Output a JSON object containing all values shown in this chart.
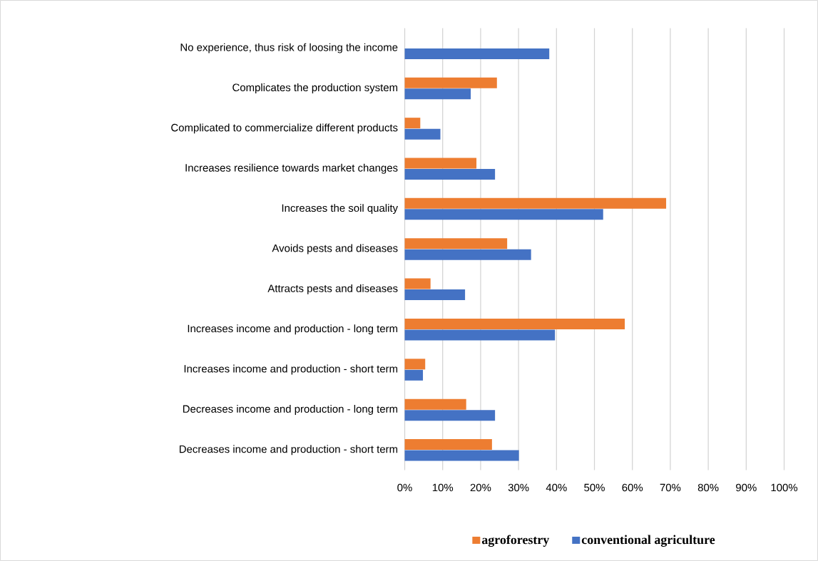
{
  "chart_data": {
    "type": "bar",
    "orientation": "horizontal",
    "categories": [
      "No experience, thus risk of loosing the income",
      "Complicates the production system",
      "Complicated to commercialize different products",
      "Increases resilience towards market changes",
      "Increases the soil quality",
      "Avoids pests and diseases",
      "Attracts pests and diseases",
      "Increases income and production - long term",
      "Increases income and production - short term",
      "Decreases income and production - long term",
      "Decreases income and production - short term"
    ],
    "series": [
      {
        "name": "agroforestry",
        "color": "#ed7d31",
        "values": [
          null,
          24.3,
          4.1,
          18.9,
          68.9,
          27.0,
          6.8,
          58.0,
          5.4,
          16.2,
          23.0
        ]
      },
      {
        "name": "conventional agriculture",
        "color": "#4472c4",
        "values": [
          38.1,
          17.4,
          9.4,
          23.8,
          52.3,
          33.3,
          15.9,
          39.6,
          4.8,
          23.8,
          30.1
        ]
      }
    ],
    "xlim": [
      0,
      100
    ],
    "xticks": [
      {
        "value": 0,
        "label": "0%"
      },
      {
        "value": 10,
        "label": "10%"
      },
      {
        "value": 20,
        "label": "20%"
      },
      {
        "value": 30,
        "label": "30%"
      },
      {
        "value": 40,
        "label": "40%"
      },
      {
        "value": 50,
        "label": "50%"
      },
      {
        "value": 60,
        "label": "60%"
      },
      {
        "value": 70,
        "label": "70%"
      },
      {
        "value": 80,
        "label": "80%"
      },
      {
        "value": 90,
        "label": "90%"
      },
      {
        "value": 100,
        "label": "100%"
      }
    ],
    "grid": "x",
    "legend": "bottom"
  }
}
